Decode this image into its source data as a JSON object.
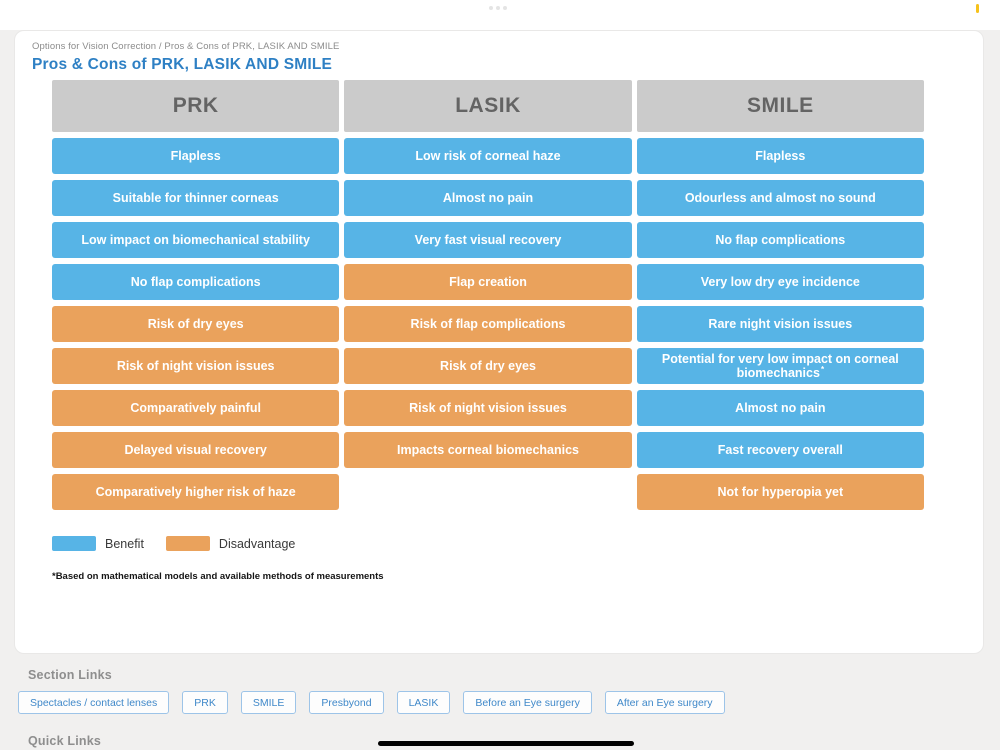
{
  "colors": {
    "benefit": "#57B4E6",
    "disadvantage": "#EAA25C",
    "header_bg": "#CBCBCB",
    "header_text": "#646464",
    "title": "#2E80C4",
    "accent_yellow": "#F6C21C"
  },
  "page": {
    "breadcrumb": "Options for Vision Correction / Pros & Cons of PRK, LASIK AND SMILE",
    "title": "Pros & Cons of PRK, LASIK AND SMILE"
  },
  "table": {
    "columns": [
      {
        "header": "PRK",
        "cells": [
          {
            "text": "Flapless",
            "type": "benefit"
          },
          {
            "text": "Suitable for thinner corneas",
            "type": "benefit"
          },
          {
            "text": "Low impact on biomechanical stability",
            "type": "benefit"
          },
          {
            "text": "No flap complications",
            "type": "benefit"
          },
          {
            "text": "Risk of dry eyes",
            "type": "disadvantage"
          },
          {
            "text": "Risk of night vision issues",
            "type": "disadvantage"
          },
          {
            "text": "Comparatively painful",
            "type": "disadvantage"
          },
          {
            "text": "Delayed visual recovery",
            "type": "disadvantage"
          },
          {
            "text": "Comparatively higher risk of haze",
            "type": "disadvantage"
          }
        ]
      },
      {
        "header": "LASIK",
        "cells": [
          {
            "text": "Low risk of corneal haze",
            "type": "benefit"
          },
          {
            "text": "Almost no pain",
            "type": "benefit"
          },
          {
            "text": "Very fast visual recovery",
            "type": "benefit"
          },
          {
            "text": "Flap creation",
            "type": "disadvantage"
          },
          {
            "text": "Risk of flap complications",
            "type": "disadvantage"
          },
          {
            "text": "Risk of dry eyes",
            "type": "disadvantage"
          },
          {
            "text": "Risk of night vision issues",
            "type": "disadvantage"
          },
          {
            "text": "Impacts corneal biomechanics",
            "type": "disadvantage"
          }
        ]
      },
      {
        "header": "SMILE",
        "cells": [
          {
            "text": "Flapless",
            "type": "benefit"
          },
          {
            "text": "Odourless and almost no sound",
            "type": "benefit"
          },
          {
            "text": "No flap complications",
            "type": "benefit"
          },
          {
            "text": "Very low dry eye incidence",
            "type": "benefit"
          },
          {
            "text": "Rare night vision issues",
            "type": "benefit"
          },
          {
            "text": "Potential for very low impact on corneal biomechanics",
            "type": "benefit",
            "marker": "*"
          },
          {
            "text": "Almost no pain",
            "type": "benefit"
          },
          {
            "text": "Fast recovery overall",
            "type": "benefit"
          },
          {
            "text": "Not for hyperopia yet",
            "type": "disadvantage"
          }
        ]
      }
    ]
  },
  "legend": {
    "items": [
      {
        "label": "Benefit",
        "type": "benefit"
      },
      {
        "label": "Disadvantage",
        "type": "disadvantage"
      }
    ]
  },
  "footnote": "*Based on mathematical models and available methods of measurements",
  "section_links": {
    "heading": "Section Links",
    "links": [
      "Spectacles / contact lenses",
      "PRK",
      "SMILE",
      "Presbyond",
      "LASIK",
      "Before an Eye surgery",
      "After an Eye surgery"
    ]
  },
  "quick_links": {
    "heading": "Quick Links"
  }
}
